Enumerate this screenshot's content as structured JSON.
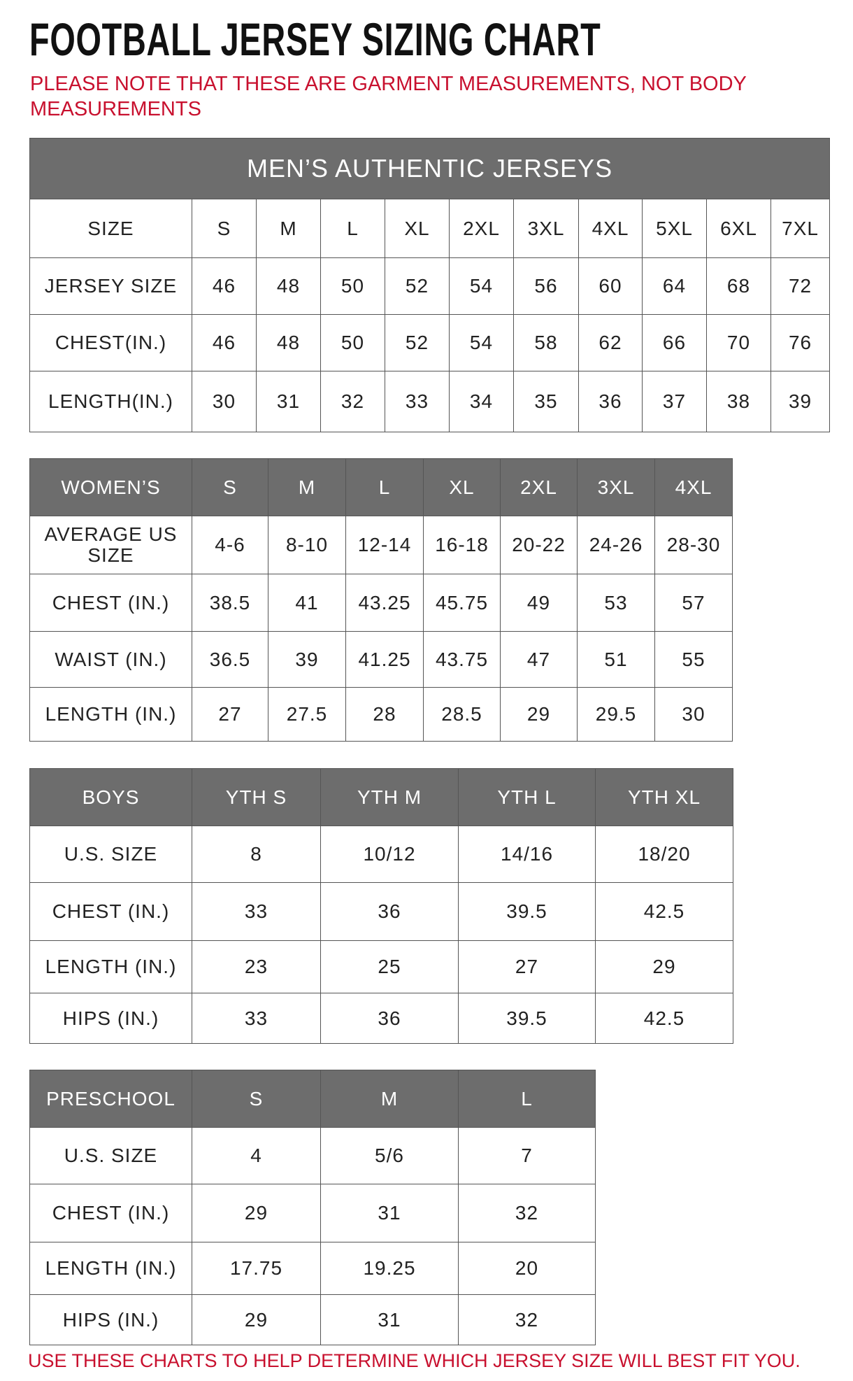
{
  "title": "FOOTBALL JERSEY SIZING CHART",
  "note": "PLEASE NOTE THAT THESE ARE GARMENT MEASUREMENTS, NOT BODY MEASUREMENTS",
  "mens": {
    "title": "MEN’S AUTHENTIC JERSEYS",
    "rows": [
      [
        "SIZE",
        "S",
        "M",
        "L",
        "XL",
        "2XL",
        "3XL",
        "4XL",
        "5XL",
        "6XL",
        "7XL"
      ],
      [
        "JERSEY SIZE",
        "46",
        "48",
        "50",
        "52",
        "54",
        "56",
        "60",
        "64",
        "68",
        "72"
      ],
      [
        "CHEST(IN.)",
        "46",
        "48",
        "50",
        "52",
        "54",
        "58",
        "62",
        "66",
        "70",
        "76"
      ],
      [
        "LENGTH(IN.)",
        "30",
        "31",
        "32",
        "33",
        "34",
        "35",
        "36",
        "37",
        "38",
        "39"
      ]
    ]
  },
  "womens": {
    "header": [
      "WOMEN’S",
      "S",
      "M",
      "L",
      "XL",
      "2XL",
      "3XL",
      "4XL"
    ],
    "rows": [
      [
        "AVERAGE US SIZE",
        "4-6",
        "8-10",
        "12-14",
        "16-18",
        "20-22",
        "24-26",
        "28-30"
      ],
      [
        "CHEST (IN.)",
        "38.5",
        "41",
        "43.25",
        "45.75",
        "49",
        "53",
        "57"
      ],
      [
        "WAIST (IN.)",
        "36.5",
        "39",
        "41.25",
        "43.75",
        "47",
        "51",
        "55"
      ],
      [
        "LENGTH (IN.)",
        "27",
        "27.5",
        "28",
        "28.5",
        "29",
        "29.5",
        "30"
      ]
    ]
  },
  "boys": {
    "header": [
      "BOYS",
      "YTH S",
      "YTH M",
      "YTH L",
      "YTH XL"
    ],
    "rows": [
      [
        "U.S. SIZE",
        "8",
        "10/12",
        "14/16",
        "18/20"
      ],
      [
        "CHEST (IN.)",
        "33",
        "36",
        "39.5",
        "42.5"
      ],
      [
        "LENGTH (IN.)",
        "23",
        "25",
        "27",
        "29"
      ],
      [
        "HIPS (IN.)",
        "33",
        "36",
        "39.5",
        "42.5"
      ]
    ]
  },
  "preschool": {
    "header": [
      "PRESCHOOL",
      "S",
      "M",
      "L"
    ],
    "rows": [
      [
        "U.S. SIZE",
        "4",
        "5/6",
        "7"
      ],
      [
        "CHEST (IN.)",
        "29",
        "31",
        "32"
      ],
      [
        "LENGTH (IN.)",
        "17.75",
        "19.25",
        "20"
      ],
      [
        "HIPS (IN.)",
        "29",
        "31",
        "32"
      ]
    ]
  },
  "footer": "USE THESE CHARTS TO HELP DETERMINE WHICH JERSEY SIZE WILL BEST FIT YOU."
}
